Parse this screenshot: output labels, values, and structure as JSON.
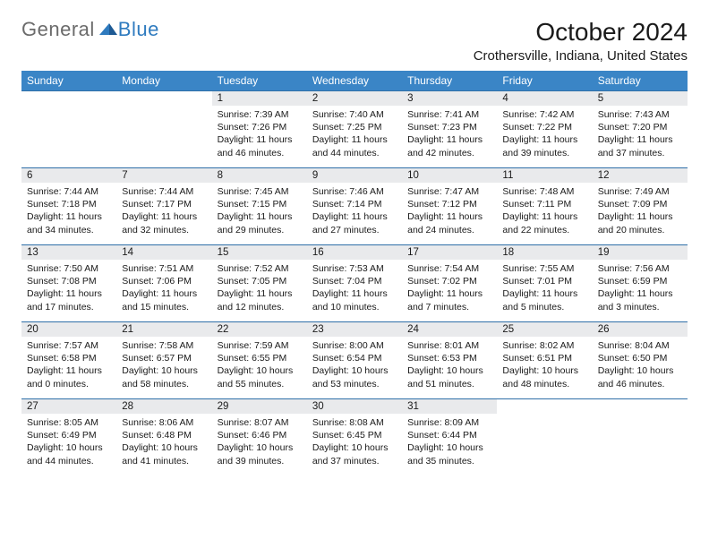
{
  "logo": {
    "text1": "General",
    "text2": "Blue"
  },
  "title": "October 2024",
  "location": "Crothersville, Indiana, United States",
  "colors": {
    "header_bg": "#3a85c6",
    "header_text": "#ffffff",
    "daynum_bg": "#e9eaec",
    "row_border": "#2f6fa8",
    "logo_gray": "#6b6b6b",
    "logo_blue": "#2f7bbf"
  },
  "day_headers": [
    "Sunday",
    "Monday",
    "Tuesday",
    "Wednesday",
    "Thursday",
    "Friday",
    "Saturday"
  ],
  "weeks": [
    [
      {
        "empty": true
      },
      {
        "empty": true
      },
      {
        "n": "1",
        "sunrise": "Sunrise: 7:39 AM",
        "sunset": "Sunset: 7:26 PM",
        "daylight": "Daylight: 11 hours and 46 minutes."
      },
      {
        "n": "2",
        "sunrise": "Sunrise: 7:40 AM",
        "sunset": "Sunset: 7:25 PM",
        "daylight": "Daylight: 11 hours and 44 minutes."
      },
      {
        "n": "3",
        "sunrise": "Sunrise: 7:41 AM",
        "sunset": "Sunset: 7:23 PM",
        "daylight": "Daylight: 11 hours and 42 minutes."
      },
      {
        "n": "4",
        "sunrise": "Sunrise: 7:42 AM",
        "sunset": "Sunset: 7:22 PM",
        "daylight": "Daylight: 11 hours and 39 minutes."
      },
      {
        "n": "5",
        "sunrise": "Sunrise: 7:43 AM",
        "sunset": "Sunset: 7:20 PM",
        "daylight": "Daylight: 11 hours and 37 minutes."
      }
    ],
    [
      {
        "n": "6",
        "sunrise": "Sunrise: 7:44 AM",
        "sunset": "Sunset: 7:18 PM",
        "daylight": "Daylight: 11 hours and 34 minutes."
      },
      {
        "n": "7",
        "sunrise": "Sunrise: 7:44 AM",
        "sunset": "Sunset: 7:17 PM",
        "daylight": "Daylight: 11 hours and 32 minutes."
      },
      {
        "n": "8",
        "sunrise": "Sunrise: 7:45 AM",
        "sunset": "Sunset: 7:15 PM",
        "daylight": "Daylight: 11 hours and 29 minutes."
      },
      {
        "n": "9",
        "sunrise": "Sunrise: 7:46 AM",
        "sunset": "Sunset: 7:14 PM",
        "daylight": "Daylight: 11 hours and 27 minutes."
      },
      {
        "n": "10",
        "sunrise": "Sunrise: 7:47 AM",
        "sunset": "Sunset: 7:12 PM",
        "daylight": "Daylight: 11 hours and 24 minutes."
      },
      {
        "n": "11",
        "sunrise": "Sunrise: 7:48 AM",
        "sunset": "Sunset: 7:11 PM",
        "daylight": "Daylight: 11 hours and 22 minutes."
      },
      {
        "n": "12",
        "sunrise": "Sunrise: 7:49 AM",
        "sunset": "Sunset: 7:09 PM",
        "daylight": "Daylight: 11 hours and 20 minutes."
      }
    ],
    [
      {
        "n": "13",
        "sunrise": "Sunrise: 7:50 AM",
        "sunset": "Sunset: 7:08 PM",
        "daylight": "Daylight: 11 hours and 17 minutes."
      },
      {
        "n": "14",
        "sunrise": "Sunrise: 7:51 AM",
        "sunset": "Sunset: 7:06 PM",
        "daylight": "Daylight: 11 hours and 15 minutes."
      },
      {
        "n": "15",
        "sunrise": "Sunrise: 7:52 AM",
        "sunset": "Sunset: 7:05 PM",
        "daylight": "Daylight: 11 hours and 12 minutes."
      },
      {
        "n": "16",
        "sunrise": "Sunrise: 7:53 AM",
        "sunset": "Sunset: 7:04 PM",
        "daylight": "Daylight: 11 hours and 10 minutes."
      },
      {
        "n": "17",
        "sunrise": "Sunrise: 7:54 AM",
        "sunset": "Sunset: 7:02 PM",
        "daylight": "Daylight: 11 hours and 7 minutes."
      },
      {
        "n": "18",
        "sunrise": "Sunrise: 7:55 AM",
        "sunset": "Sunset: 7:01 PM",
        "daylight": "Daylight: 11 hours and 5 minutes."
      },
      {
        "n": "19",
        "sunrise": "Sunrise: 7:56 AM",
        "sunset": "Sunset: 6:59 PM",
        "daylight": "Daylight: 11 hours and 3 minutes."
      }
    ],
    [
      {
        "n": "20",
        "sunrise": "Sunrise: 7:57 AM",
        "sunset": "Sunset: 6:58 PM",
        "daylight": "Daylight: 11 hours and 0 minutes."
      },
      {
        "n": "21",
        "sunrise": "Sunrise: 7:58 AM",
        "sunset": "Sunset: 6:57 PM",
        "daylight": "Daylight: 10 hours and 58 minutes."
      },
      {
        "n": "22",
        "sunrise": "Sunrise: 7:59 AM",
        "sunset": "Sunset: 6:55 PM",
        "daylight": "Daylight: 10 hours and 55 minutes."
      },
      {
        "n": "23",
        "sunrise": "Sunrise: 8:00 AM",
        "sunset": "Sunset: 6:54 PM",
        "daylight": "Daylight: 10 hours and 53 minutes."
      },
      {
        "n": "24",
        "sunrise": "Sunrise: 8:01 AM",
        "sunset": "Sunset: 6:53 PM",
        "daylight": "Daylight: 10 hours and 51 minutes."
      },
      {
        "n": "25",
        "sunrise": "Sunrise: 8:02 AM",
        "sunset": "Sunset: 6:51 PM",
        "daylight": "Daylight: 10 hours and 48 minutes."
      },
      {
        "n": "26",
        "sunrise": "Sunrise: 8:04 AM",
        "sunset": "Sunset: 6:50 PM",
        "daylight": "Daylight: 10 hours and 46 minutes."
      }
    ],
    [
      {
        "n": "27",
        "sunrise": "Sunrise: 8:05 AM",
        "sunset": "Sunset: 6:49 PM",
        "daylight": "Daylight: 10 hours and 44 minutes."
      },
      {
        "n": "28",
        "sunrise": "Sunrise: 8:06 AM",
        "sunset": "Sunset: 6:48 PM",
        "daylight": "Daylight: 10 hours and 41 minutes."
      },
      {
        "n": "29",
        "sunrise": "Sunrise: 8:07 AM",
        "sunset": "Sunset: 6:46 PM",
        "daylight": "Daylight: 10 hours and 39 minutes."
      },
      {
        "n": "30",
        "sunrise": "Sunrise: 8:08 AM",
        "sunset": "Sunset: 6:45 PM",
        "daylight": "Daylight: 10 hours and 37 minutes."
      },
      {
        "n": "31",
        "sunrise": "Sunrise: 8:09 AM",
        "sunset": "Sunset: 6:44 PM",
        "daylight": "Daylight: 10 hours and 35 minutes."
      },
      {
        "empty": true
      },
      {
        "empty": true
      }
    ]
  ]
}
